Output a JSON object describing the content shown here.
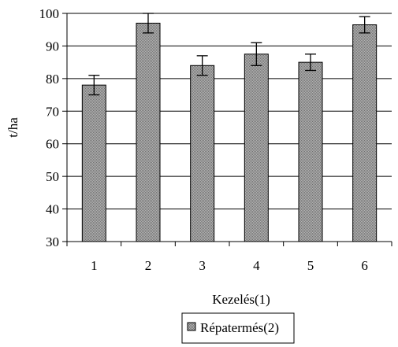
{
  "chart_data": {
    "type": "bar",
    "categories": [
      "1",
      "2",
      "3",
      "4",
      "5",
      "6"
    ],
    "series": [
      {
        "name": "Répatermés(2)",
        "values": [
          78,
          97,
          84,
          87.5,
          85,
          96.5
        ],
        "error": [
          3,
          3,
          3,
          3.5,
          2.5,
          2.5
        ]
      }
    ],
    "title": "",
    "xlabel": "Kezelés(1)",
    "ylabel": "t/ha",
    "ylim": [
      30,
      100
    ],
    "yticks": [
      30,
      40,
      50,
      60,
      70,
      80,
      90,
      100
    ],
    "grid": true,
    "legend_position": "bottom",
    "colors": {
      "bar": "#9a9a9a",
      "bar_stroke": "#000000",
      "grid": "#000000"
    }
  }
}
